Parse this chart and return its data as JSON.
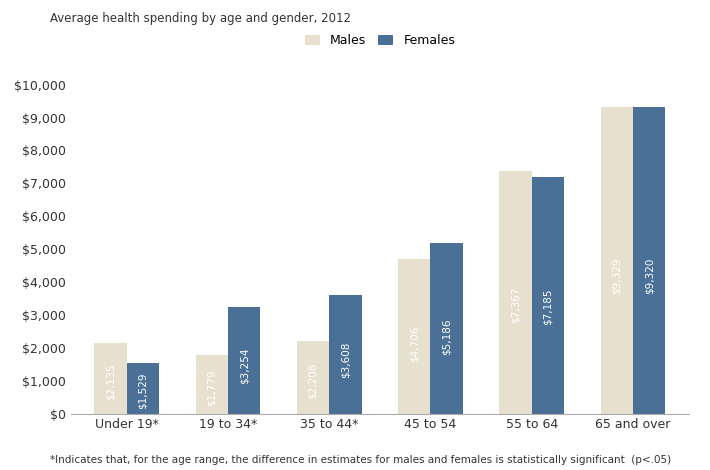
{
  "title": "Average health spending by age and gender, 2012",
  "footnote": "*Indicates that, for the age range, the difference in estimates for males and females is statistically significant  (p<.05)",
  "categories": [
    "Under 19*",
    "19 to 34*",
    "35 to 44*",
    "45 to 54",
    "55 to 64",
    "65 and over"
  ],
  "males": [
    2135,
    1779,
    2208,
    4706,
    7367,
    9329
  ],
  "females": [
    1529,
    3254,
    3608,
    5186,
    7185,
    9320
  ],
  "male_color": "#E8E0CE",
  "female_color": "#4A7098",
  "bar_width": 0.32,
  "ylim": [
    0,
    10000
  ],
  "yticks": [
    0,
    1000,
    2000,
    3000,
    4000,
    5000,
    6000,
    7000,
    8000,
    9000,
    10000
  ],
  "legend_labels": [
    "Males",
    "Females"
  ],
  "value_labels_males": [
    "$2,135",
    "$1,779",
    "$2,208",
    "$4,706",
    "$7,367",
    "$9,329"
  ],
  "value_labels_females": [
    "$1,529",
    "$3,254",
    "$3,608",
    "$5,186",
    "$7,185",
    "$9,320"
  ],
  "background_color": "#FFFFFF",
  "title_fontsize": 8.5,
  "axis_fontsize": 9,
  "label_fontsize": 7.5,
  "footnote_fontsize": 7.5,
  "label_color_all": "#FFFFFF"
}
